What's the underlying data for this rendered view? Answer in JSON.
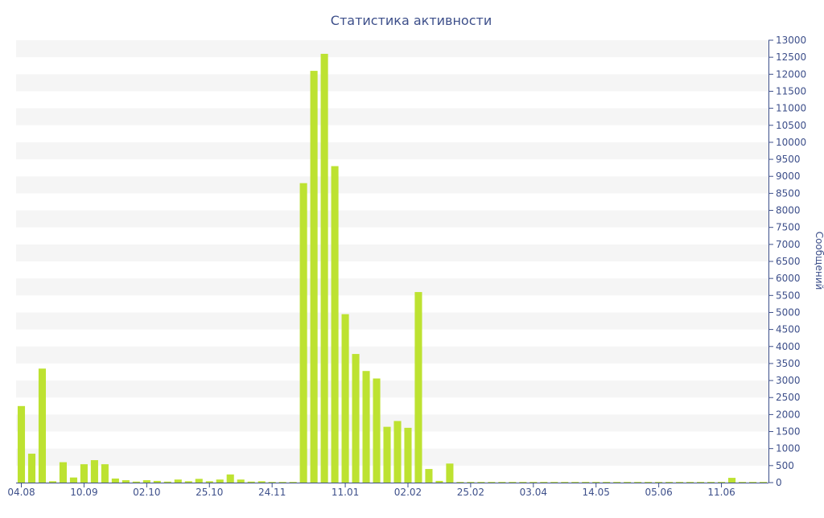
{
  "chart_data": {
    "type": "bar",
    "title": "Статистика активности",
    "ylabel": "Сообщений",
    "xlabel": "",
    "ylim": [
      0,
      13000
    ],
    "y_ticks": [
      0,
      500,
      1000,
      1500,
      2000,
      2500,
      3000,
      3500,
      4000,
      4500,
      5000,
      5500,
      6000,
      6500,
      7000,
      7500,
      8000,
      8500,
      9000,
      9500,
      10000,
      10500,
      11000,
      11500,
      12000,
      12500,
      13000
    ],
    "x_tick_labels": [
      {
        "label": "04.08",
        "index": 0
      },
      {
        "label": "10.09",
        "index": 6
      },
      {
        "label": "02.10",
        "index": 12
      },
      {
        "label": "25.10",
        "index": 18
      },
      {
        "label": "24.11",
        "index": 24
      },
      {
        "label": "11.01",
        "index": 31
      },
      {
        "label": "02.02",
        "index": 37
      },
      {
        "label": "25.02",
        "index": 43
      },
      {
        "label": "03.04",
        "index": 49
      },
      {
        "label": "14.05",
        "index": 55
      },
      {
        "label": "05.06",
        "index": 61
      },
      {
        "label": "11.06",
        "index": 67
      }
    ],
    "grid": "horizontal-bands",
    "bar_color": "#bde231",
    "values": [
      2250,
      850,
      3350,
      40,
      600,
      150,
      540,
      660,
      540,
      120,
      70,
      30,
      70,
      50,
      30,
      90,
      40,
      110,
      40,
      90,
      240,
      90,
      30,
      40,
      20,
      20,
      20,
      8800,
      12100,
      12600,
      9300,
      4950,
      3780,
      3280,
      3060,
      1640,
      1810,
      1610,
      5600,
      400,
      50,
      560,
      20,
      20,
      20,
      20,
      20,
      20,
      20,
      20,
      20,
      20,
      20,
      20,
      20,
      20,
      20,
      20,
      20,
      20,
      20,
      20,
      20,
      20,
      20,
      20,
      20,
      20,
      140,
      20,
      20,
      20
    ]
  },
  "colors": {
    "bar": "#bde231",
    "axis": "#3d4f8a",
    "band": "#f5f5f5",
    "text": "#3d4f8a"
  }
}
